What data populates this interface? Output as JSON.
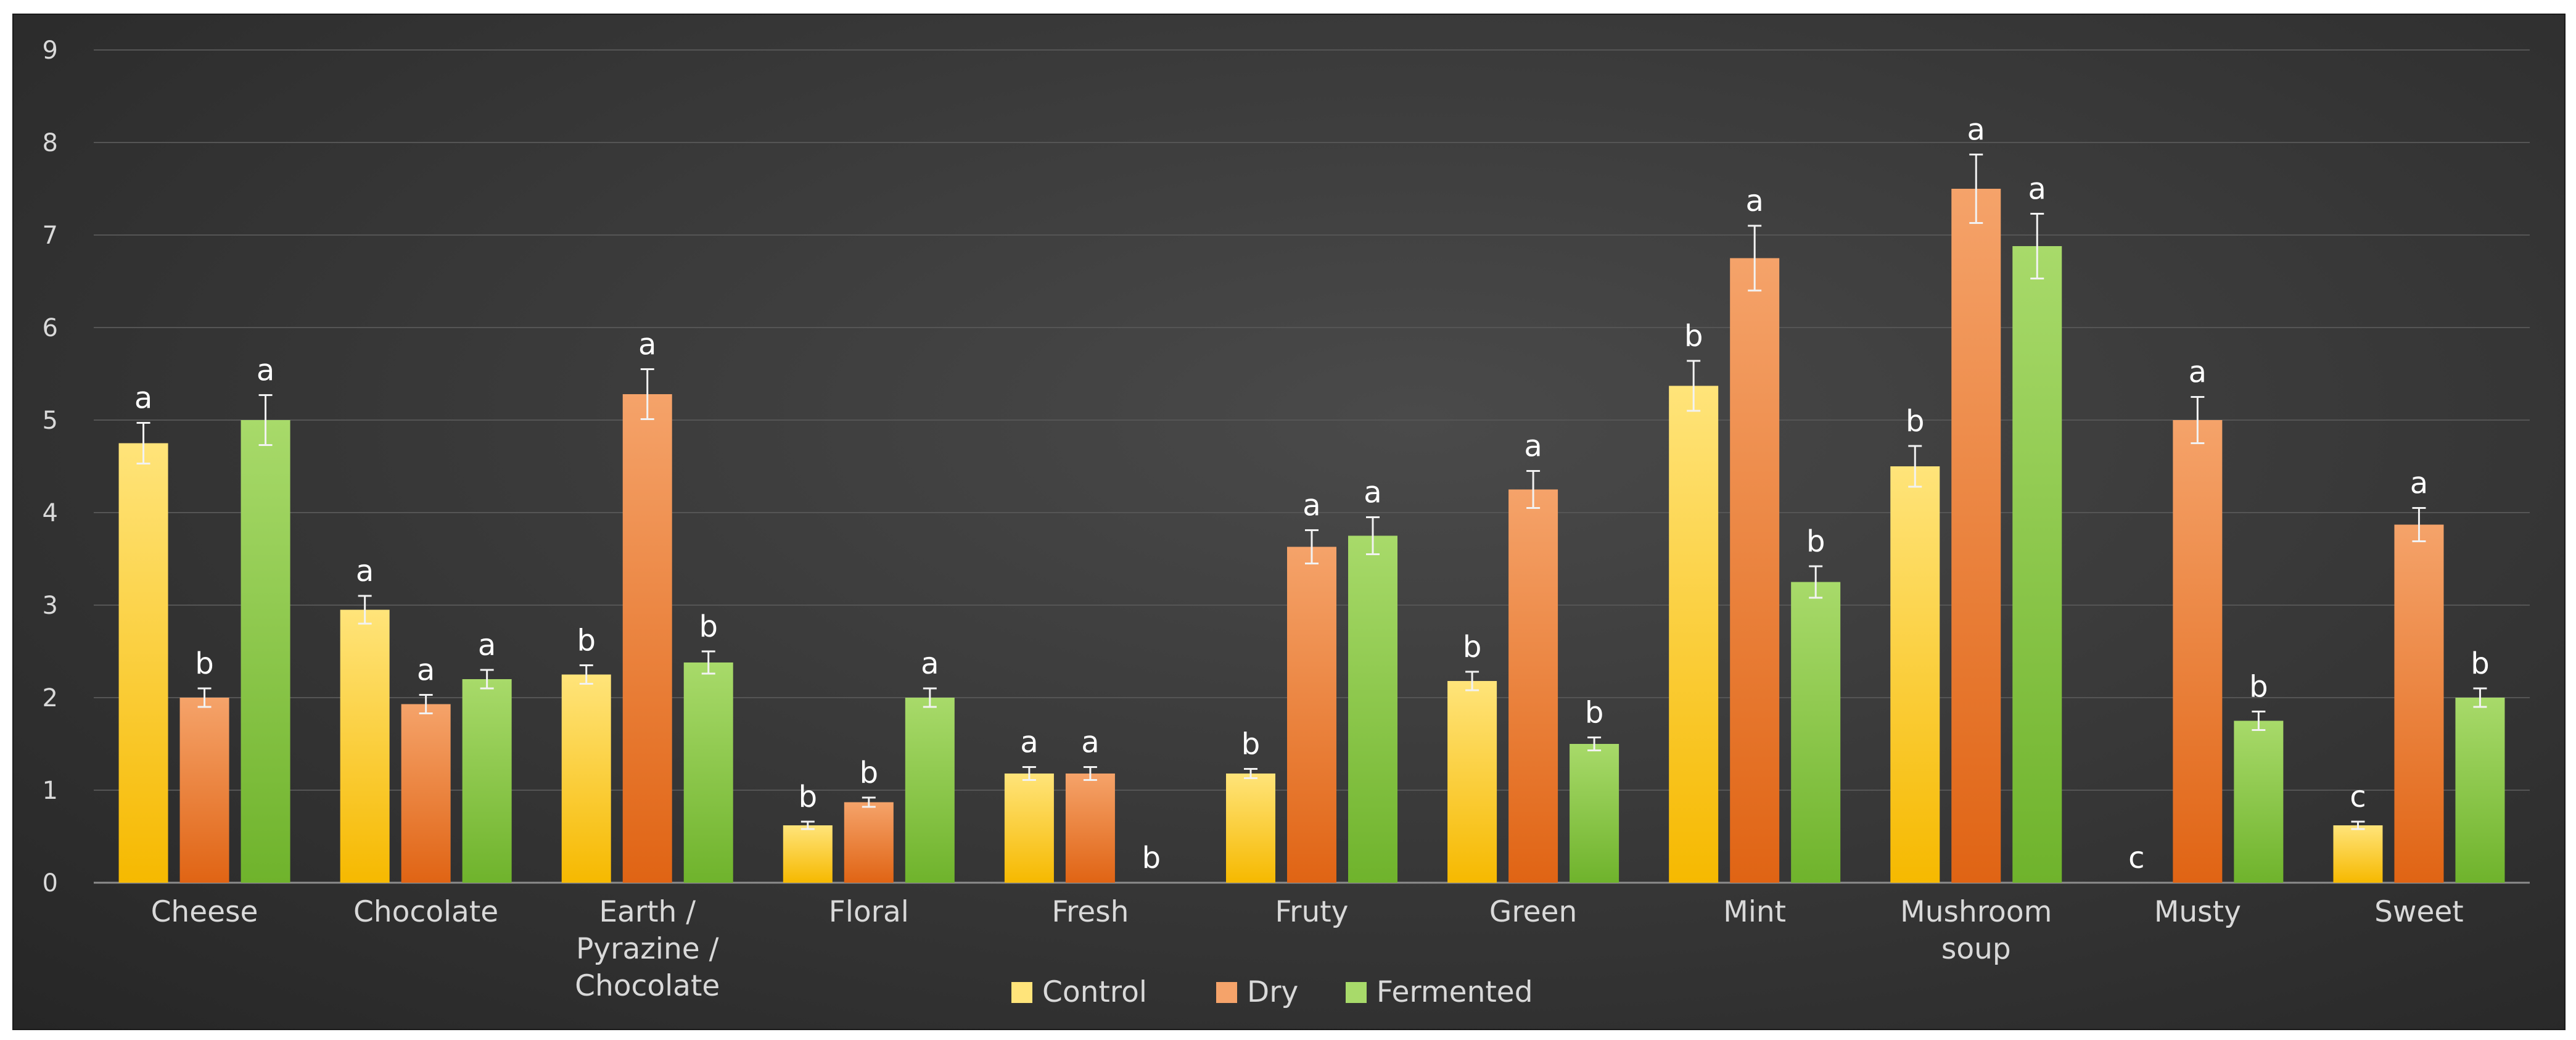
{
  "chart_data": {
    "type": "bar",
    "title": "",
    "xlabel": "",
    "ylabel": "",
    "ylim": [
      0,
      9
    ],
    "yticks": [
      0,
      1,
      2,
      3,
      4,
      5,
      6,
      7,
      8,
      9
    ],
    "grid": true,
    "legend_position": "bottom",
    "categories": [
      [
        "Cheese"
      ],
      [
        "Chocolate"
      ],
      [
        "Earth /",
        "Pyrazine /",
        "Chocolate"
      ],
      [
        "Floral"
      ],
      [
        "Fresh"
      ],
      [
        "Fruty"
      ],
      [
        "Green"
      ],
      [
        "Mint"
      ],
      [
        "Mushroom",
        "soup"
      ],
      [
        "Musty"
      ],
      [
        "Sweet"
      ]
    ],
    "series": [
      {
        "name": "Control",
        "color_light": "#ffe47a",
        "color_dark": "#f6b900",
        "values": [
          4.75,
          2.95,
          2.25,
          0.62,
          1.18,
          1.18,
          2.18,
          5.37,
          4.5,
          0,
          0.62
        ],
        "errors": [
          0.22,
          0.15,
          0.1,
          0.04,
          0.07,
          0.05,
          0.1,
          0.27,
          0.22,
          0,
          0.04
        ],
        "sig": [
          "a",
          "a",
          "b",
          "b",
          "a",
          "b",
          "b",
          "b",
          "b",
          "c",
          "c"
        ]
      },
      {
        "name": "Dry",
        "color_light": "#f5a36a",
        "color_dark": "#e06414",
        "values": [
          2.0,
          1.93,
          5.28,
          0.87,
          1.18,
          3.63,
          4.25,
          6.75,
          7.5,
          5.0,
          3.87
        ],
        "errors": [
          0.1,
          0.1,
          0.27,
          0.05,
          0.07,
          0.18,
          0.2,
          0.35,
          0.37,
          0.25,
          0.18
        ],
        "sig": [
          "b",
          "a",
          "a",
          "b",
          "a",
          "a",
          "a",
          "a",
          "a",
          "a",
          "a"
        ]
      },
      {
        "name": "Fermented",
        "color_light": "#a8da6a",
        "color_dark": "#6fb32c",
        "values": [
          5.0,
          2.2,
          2.38,
          2.0,
          0,
          3.75,
          1.5,
          3.25,
          6.88,
          1.75,
          2.0
        ],
        "errors": [
          0.27,
          0.1,
          0.12,
          0.1,
          0,
          0.2,
          0.07,
          0.17,
          0.35,
          0.1,
          0.1
        ],
        "sig": [
          "a",
          "a",
          "b",
          "a",
          "b",
          "a",
          "b",
          "b",
          "a",
          "b",
          "b"
        ]
      }
    ]
  }
}
